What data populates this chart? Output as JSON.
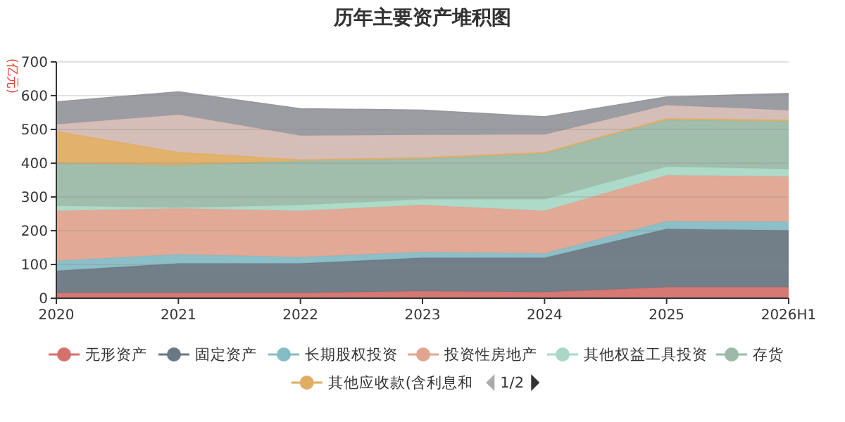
{
  "chart_data": {
    "type": "area",
    "stacked": true,
    "title": "历年主要资产堆积图",
    "ylabel": "(亿元)",
    "categories": [
      "2020",
      "2021",
      "2022",
      "2023",
      "2024",
      "2025",
      "2026H1"
    ],
    "ylim": [
      0,
      700
    ],
    "yticks": [
      0,
      100,
      200,
      300,
      400,
      500,
      600,
      700
    ],
    "grid": "y",
    "legend": "bottom",
    "annotations": [
      "1/2"
    ],
    "series": [
      {
        "name": "无形资产",
        "color": "#d4716d",
        "values": [
          16,
          16,
          16,
          21,
          18,
          33,
          33
        ]
      },
      {
        "name": "固定资产",
        "color": "#6a7883",
        "values": [
          65,
          87,
          87,
          99,
          102,
          172,
          168
        ]
      },
      {
        "name": "长期股权投资",
        "color": "#86bcc4",
        "values": [
          30,
          27,
          19,
          17,
          13,
          23,
          26
        ]
      },
      {
        "name": "投资性房地产",
        "color": "#e0a590",
        "values": [
          148,
          136,
          137,
          139,
          126,
          136,
          134
        ]
      },
      {
        "name": "其他权益工具投资",
        "color": "#a9d8c6",
        "values": [
          15,
          2,
          17,
          17,
          34,
          26,
          22
        ]
      },
      {
        "name": "存货",
        "color": "#9bbba6",
        "values": [
          126,
          126,
          131,
          120,
          136,
          138,
          141
        ]
      },
      {
        "name": "其他应收款(含利息和",
        "color": "#e0ad63",
        "values": [
          95,
          39,
          4,
          4,
          4,
          5,
          4
        ]
      },
      {
        "color": "#d4bab4",
        "values": [
          20,
          111,
          71,
          67,
          52,
          39,
          29
        ]
      },
      {
        "color": "#97989d",
        "values": [
          66,
          67,
          79,
          73,
          52,
          24,
          49
        ]
      }
    ]
  }
}
